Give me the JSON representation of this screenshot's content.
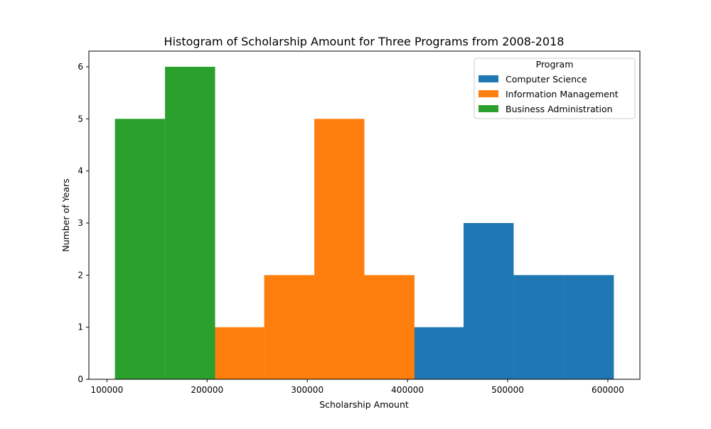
{
  "chart_data": {
    "type": "histogram",
    "title": "Histogram of Scholarship Amount for Three Programs from 2008-2018",
    "xlabel": "Scholarship Amount",
    "ylabel": "Number of Years",
    "xlim": [
      82000,
      632000
    ],
    "ylim": [
      0,
      6.3
    ],
    "x_ticks": [
      100000,
      200000,
      300000,
      400000,
      500000,
      600000
    ],
    "y_ticks": [
      0,
      1,
      2,
      3,
      4,
      5,
      6
    ],
    "grid": false,
    "legend": {
      "title": "Program",
      "placement": "top-right"
    },
    "series": [
      {
        "name": "Computer Science",
        "color": "#1f77b4",
        "bins": [
          {
            "start": 406000,
            "end": 456000,
            "count": 1
          },
          {
            "start": 456000,
            "end": 506000,
            "count": 3
          },
          {
            "start": 506000,
            "end": 556000,
            "count": 2
          },
          {
            "start": 556000,
            "end": 606000,
            "count": 2
          }
        ]
      },
      {
        "name": "Information Management",
        "color": "#ff7f0e",
        "bins": [
          {
            "start": 207000,
            "end": 257000,
            "count": 1
          },
          {
            "start": 257000,
            "end": 307000,
            "count": 2
          },
          {
            "start": 307000,
            "end": 357000,
            "count": 5
          },
          {
            "start": 357000,
            "end": 407000,
            "count": 2
          }
        ]
      },
      {
        "name": "Business Administration",
        "color": "#2ca02c",
        "bins": [
          {
            "start": 108000,
            "end": 158000,
            "count": 5
          },
          {
            "start": 158000,
            "end": 208000,
            "count": 6
          }
        ]
      }
    ]
  }
}
